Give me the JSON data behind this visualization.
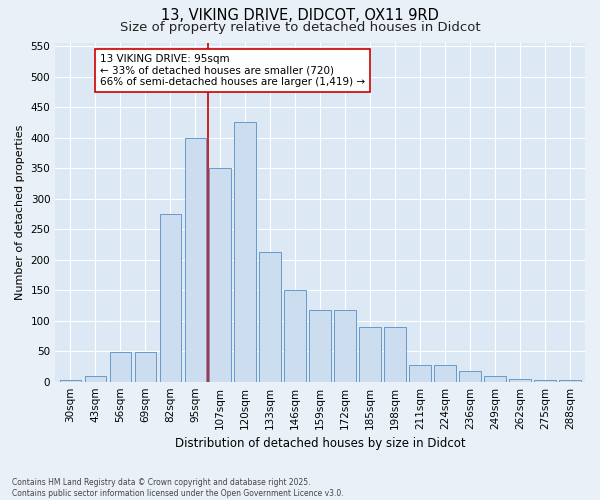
{
  "title1": "13, VIKING DRIVE, DIDCOT, OX11 9RD",
  "title2": "Size of property relative to detached houses in Didcot",
  "xlabel": "Distribution of detached houses by size in Didcot",
  "ylabel": "Number of detached properties",
  "categories": [
    "30sqm",
    "43sqm",
    "56sqm",
    "69sqm",
    "82sqm",
    "95sqm",
    "107sqm",
    "120sqm",
    "133sqm",
    "146sqm",
    "159sqm",
    "172sqm",
    "185sqm",
    "198sqm",
    "211sqm",
    "224sqm",
    "236sqm",
    "249sqm",
    "262sqm",
    "275sqm",
    "288sqm"
  ],
  "values": [
    3,
    10,
    48,
    48,
    275,
    400,
    350,
    425,
    212,
    150,
    117,
    117,
    90,
    90,
    28,
    28,
    17,
    10,
    5,
    2,
    2
  ],
  "bar_color": "#ccddf0",
  "bar_edge_color": "#6699cc",
  "vline_x": 5.5,
  "vline_color": "#cc0000",
  "annotation_text": "13 VIKING DRIVE: 95sqm\n← 33% of detached houses are smaller (720)\n66% of semi-detached houses are larger (1,419) →",
  "annotation_box_color": "#ffffff",
  "annotation_box_edge": "#cc0000",
  "ylim": [
    0,
    555
  ],
  "yticks": [
    0,
    50,
    100,
    150,
    200,
    250,
    300,
    350,
    400,
    450,
    500,
    550
  ],
  "bg_color": "#dce8f4",
  "fig_bg_color": "#eaf0f8",
  "footer": "Contains HM Land Registry data © Crown copyright and database right 2025.\nContains public sector information licensed under the Open Government Licence v3.0.",
  "title_fontsize": 10.5,
  "subtitle_fontsize": 9.5,
  "ann_fontsize": 7.5,
  "ylabel_fontsize": 8,
  "xlabel_fontsize": 8.5,
  "tick_fontsize": 7.5,
  "footer_fontsize": 5.5
}
